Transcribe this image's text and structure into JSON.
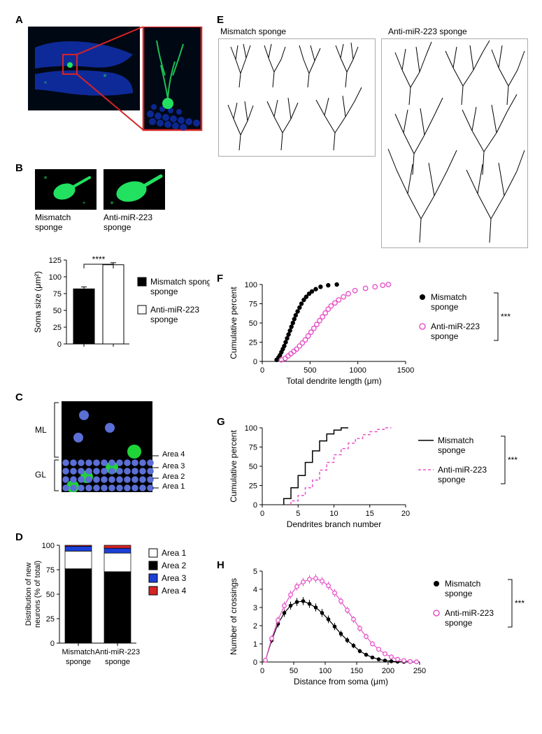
{
  "labels": {
    "A": "A",
    "B": "B",
    "C": "C",
    "D": "D",
    "E": "E",
    "F": "F",
    "G": "G",
    "H": "H"
  },
  "panelE": {
    "title_mismatch": "Mismatch sponge",
    "title_anti": "Anti-miR-223 sponge"
  },
  "panelB": {
    "img1_label": "Mismatch sponge",
    "img2_label": "Anti-miR-223 sponge",
    "ylabel": "Soma size (μm²)",
    "sig": "****",
    "legend_mismatch": "Mismatch sponge",
    "legend_anti": "Anti-miR-223 sponge",
    "chart": {
      "type": "bar",
      "values": [
        82,
        118
      ],
      "errors": [
        3,
        3
      ],
      "bar_colors": [
        "#000000",
        "#ffffff"
      ],
      "ylim": [
        0,
        125
      ],
      "yticks": [
        0,
        25,
        50,
        75,
        100,
        125
      ],
      "bar_width": 0.6
    }
  },
  "panelC": {
    "ml": "ML",
    "gl": "GL",
    "area4": "Area 4",
    "area3": "Area 3",
    "area2": "Area 2",
    "area1": "Area 1"
  },
  "panelD": {
    "ylabel": "Distribution of new neurons (% of total)",
    "x1": "Mismatch sponge",
    "x2": "Anti-miR-223 sponge",
    "legend": {
      "a1": "Area 1",
      "a2": "Area 2",
      "a3": "Area 3",
      "a4": "Area 4"
    },
    "chart": {
      "type": "stacked-bar",
      "categories": [
        "Mismatch sponge",
        "Anti-miR-223 sponge"
      ],
      "series": [
        {
          "name": "Area 2",
          "values": [
            76,
            73
          ],
          "color": "#000000"
        },
        {
          "name": "Area 1",
          "values": [
            18,
            19
          ],
          "color": "#ffffff"
        },
        {
          "name": "Area 3",
          "values": [
            5,
            5
          ],
          "color": "#1c3fd6"
        },
        {
          "name": "Area 4",
          "values": [
            1,
            3
          ],
          "color": "#d62424"
        }
      ],
      "ylim": [
        0,
        100
      ],
      "yticks": [
        0,
        25,
        50,
        75,
        100
      ]
    }
  },
  "panelF": {
    "ylabel": "Cumulative percent",
    "xlabel": "Total dendrite length (μm)",
    "sig": "***",
    "legend_mismatch": "Mismatch sponge",
    "legend_anti": "Anti-miR-223 sponge",
    "chart": {
      "type": "scatter-cumulative",
      "xlim": [
        0,
        1500
      ],
      "xticks": [
        0,
        500,
        1000,
        1500
      ],
      "ylim": [
        0,
        100
      ],
      "yticks": [
        0,
        25,
        50,
        75,
        100
      ],
      "mismatch_color": "#000000",
      "anti_color": "#e754c8",
      "mismatch": [
        [
          150,
          2
        ],
        [
          170,
          5
        ],
        [
          185,
          8
        ],
        [
          200,
          12
        ],
        [
          215,
          16
        ],
        [
          230,
          20
        ],
        [
          245,
          25
        ],
        [
          260,
          30
        ],
        [
          275,
          35
        ],
        [
          290,
          40
        ],
        [
          305,
          45
        ],
        [
          320,
          50
        ],
        [
          335,
          55
        ],
        [
          350,
          60
        ],
        [
          370,
          65
        ],
        [
          390,
          70
        ],
        [
          410,
          75
        ],
        [
          435,
          80
        ],
        [
          460,
          84
        ],
        [
          490,
          88
        ],
        [
          520,
          91
        ],
        [
          560,
          94
        ],
        [
          610,
          97
        ],
        [
          690,
          99
        ],
        [
          780,
          100
        ]
      ],
      "anti": [
        [
          200,
          2
        ],
        [
          240,
          4
        ],
        [
          270,
          7
        ],
        [
          300,
          10
        ],
        [
          330,
          13
        ],
        [
          360,
          16
        ],
        [
          390,
          20
        ],
        [
          420,
          24
        ],
        [
          450,
          28
        ],
        [
          480,
          33
        ],
        [
          510,
          38
        ],
        [
          540,
          43
        ],
        [
          570,
          48
        ],
        [
          600,
          53
        ],
        [
          630,
          58
        ],
        [
          660,
          63
        ],
        [
          690,
          68
        ],
        [
          720,
          72
        ],
        [
          760,
          76
        ],
        [
          800,
          80
        ],
        [
          850,
          84
        ],
        [
          900,
          88
        ],
        [
          970,
          92
        ],
        [
          1080,
          95
        ],
        [
          1180,
          97
        ],
        [
          1260,
          99
        ],
        [
          1320,
          100
        ]
      ]
    }
  },
  "panelG": {
    "ylabel": "Cumulative percent",
    "xlabel": "Dendrites branch number",
    "sig": "***",
    "legend_mismatch": "Mismatch sponge",
    "legend_anti": "Anti-miR-223 sponge",
    "chart": {
      "type": "step",
      "xlim": [
        0,
        20
      ],
      "xticks": [
        0,
        5,
        10,
        15,
        20
      ],
      "ylim": [
        0,
        100
      ],
      "yticks": [
        0,
        25,
        50,
        75,
        100
      ],
      "mismatch_color": "#000000",
      "anti_color": "#e754c8",
      "mismatch_steps": [
        [
          3,
          0
        ],
        [
          3,
          8
        ],
        [
          4,
          8
        ],
        [
          4,
          22
        ],
        [
          5,
          22
        ],
        [
          5,
          38
        ],
        [
          6,
          38
        ],
        [
          6,
          55
        ],
        [
          7,
          55
        ],
        [
          7,
          70
        ],
        [
          8,
          70
        ],
        [
          8,
          83
        ],
        [
          9,
          83
        ],
        [
          9,
          92
        ],
        [
          10,
          92
        ],
        [
          10,
          97
        ],
        [
          11,
          97
        ],
        [
          11,
          100
        ],
        [
          12,
          100
        ]
      ],
      "anti_steps": [
        [
          4,
          0
        ],
        [
          4,
          5
        ],
        [
          5,
          5
        ],
        [
          5,
          12
        ],
        [
          6,
          12
        ],
        [
          6,
          22
        ],
        [
          7,
          22
        ],
        [
          7,
          32
        ],
        [
          8,
          32
        ],
        [
          8,
          45
        ],
        [
          9,
          45
        ],
        [
          9,
          55
        ],
        [
          10,
          55
        ],
        [
          10,
          65
        ],
        [
          11,
          65
        ],
        [
          11,
          73
        ],
        [
          12,
          73
        ],
        [
          12,
          80
        ],
        [
          13,
          80
        ],
        [
          13,
          86
        ],
        [
          14,
          86
        ],
        [
          14,
          91
        ],
        [
          15,
          91
        ],
        [
          15,
          95
        ],
        [
          16,
          95
        ],
        [
          16,
          98
        ],
        [
          17,
          98
        ],
        [
          17,
          100
        ],
        [
          18,
          100
        ]
      ]
    }
  },
  "panelH": {
    "ylabel": "Number of crossings",
    "xlabel": "Distance from soma (μm)",
    "sig": "***",
    "legend_mismatch": "Mismatch sponge",
    "legend_anti": "Anti-miR-223 sponge",
    "chart": {
      "type": "line-error",
      "xlim": [
        0,
        250
      ],
      "xticks": [
        0,
        50,
        100,
        150,
        200,
        250
      ],
      "ylim": [
        0,
        5
      ],
      "yticks": [
        0,
        1,
        2,
        3,
        4,
        5
      ],
      "mismatch_color": "#000000",
      "anti_color": "#e754c8",
      "mismatch": [
        [
          5,
          0.1,
          0.05
        ],
        [
          15,
          1.2,
          0.15
        ],
        [
          25,
          2.1,
          0.2
        ],
        [
          35,
          2.7,
          0.22
        ],
        [
          45,
          3.1,
          0.22
        ],
        [
          55,
          3.3,
          0.22
        ],
        [
          65,
          3.35,
          0.22
        ],
        [
          75,
          3.2,
          0.22
        ],
        [
          85,
          3.0,
          0.22
        ],
        [
          95,
          2.7,
          0.22
        ],
        [
          105,
          2.35,
          0.21
        ],
        [
          115,
          1.95,
          0.2
        ],
        [
          125,
          1.55,
          0.18
        ],
        [
          135,
          1.2,
          0.16
        ],
        [
          145,
          0.9,
          0.14
        ],
        [
          155,
          0.6,
          0.12
        ],
        [
          165,
          0.4,
          0.1
        ],
        [
          175,
          0.25,
          0.08
        ],
        [
          185,
          0.15,
          0.06
        ],
        [
          195,
          0.08,
          0.04
        ],
        [
          205,
          0.04,
          0.03
        ],
        [
          215,
          0.02,
          0.02
        ],
        [
          225,
          0.01,
          0.01
        ],
        [
          235,
          0,
          0
        ],
        [
          245,
          0,
          0
        ]
      ],
      "anti": [
        [
          5,
          0.1,
          0.05
        ],
        [
          15,
          1.3,
          0.15
        ],
        [
          25,
          2.3,
          0.2
        ],
        [
          35,
          3.1,
          0.23
        ],
        [
          45,
          3.7,
          0.23
        ],
        [
          55,
          4.15,
          0.23
        ],
        [
          65,
          4.4,
          0.23
        ],
        [
          75,
          4.55,
          0.23
        ],
        [
          85,
          4.6,
          0.23
        ],
        [
          95,
          4.45,
          0.23
        ],
        [
          105,
          4.2,
          0.23
        ],
        [
          115,
          3.8,
          0.22
        ],
        [
          125,
          3.35,
          0.21
        ],
        [
          135,
          2.85,
          0.2
        ],
        [
          145,
          2.35,
          0.19
        ],
        [
          155,
          1.85,
          0.18
        ],
        [
          165,
          1.4,
          0.16
        ],
        [
          175,
          1.0,
          0.14
        ],
        [
          185,
          0.7,
          0.12
        ],
        [
          195,
          0.45,
          0.1
        ],
        [
          205,
          0.28,
          0.08
        ],
        [
          215,
          0.15,
          0.06
        ],
        [
          225,
          0.08,
          0.04
        ],
        [
          235,
          0.03,
          0.02
        ],
        [
          245,
          0.01,
          0.01
        ]
      ]
    }
  },
  "colors": {
    "magenta": "#e754c8",
    "blue": "#3b5bcc",
    "red": "#d62424",
    "green_fluor": "#22e060",
    "blue_fluor": "#1030b0"
  }
}
